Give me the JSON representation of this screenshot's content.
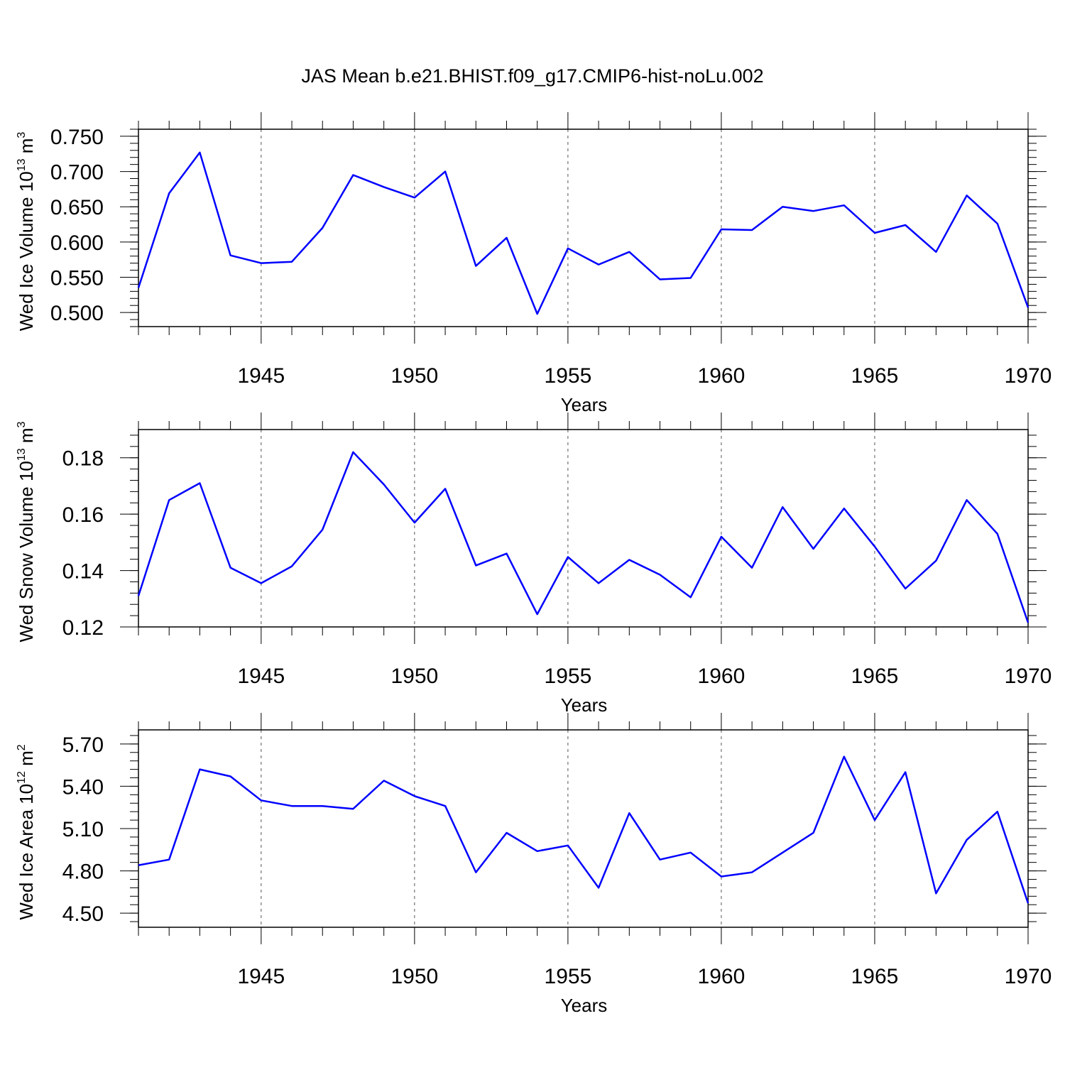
{
  "title": "JAS Mean b.e21.BHIST.f09_g17.CMIP6-hist-noLu.002",
  "colors": {
    "line": "#0000ff",
    "axis": "#000000",
    "grid": "#555555"
  },
  "chart_data": [
    {
      "type": "line",
      "name": "ice-volume",
      "ylabel": "Wed Ice Volume",
      "ylabel_unit_base": "10",
      "ylabel_unit_exp": "13",
      "ylabel_unit_m": "m",
      "ylabel_unit_m_exp": "3",
      "xlabel": "Years",
      "xlim": [
        1941,
        1970
      ],
      "ylim": [
        0.48,
        0.76
      ],
      "xticks": [
        1945,
        1950,
        1955,
        1960,
        1965,
        1970
      ],
      "yticks": [
        0.5,
        0.55,
        0.6,
        0.65,
        0.7,
        0.75
      ],
      "ytick_labels": [
        "0.500",
        "0.550",
        "0.600",
        "0.650",
        "0.700",
        "0.750"
      ],
      "y_minor_step": 0.01,
      "grid_x": [
        1945,
        1950,
        1955,
        1960,
        1965
      ],
      "x": [
        1941,
        1942,
        1943,
        1944,
        1945,
        1946,
        1947,
        1948,
        1949,
        1950,
        1951,
        1952,
        1953,
        1954,
        1955,
        1956,
        1957,
        1958,
        1959,
        1960,
        1961,
        1962,
        1963,
        1964,
        1965,
        1966,
        1967,
        1968,
        1969,
        1970
      ],
      "values": [
        0.535,
        0.669,
        0.727,
        0.581,
        0.57,
        0.572,
        0.62,
        0.695,
        0.678,
        0.663,
        0.7,
        0.566,
        0.606,
        0.498,
        0.591,
        0.568,
        0.586,
        0.547,
        0.549,
        0.618,
        0.617,
        0.65,
        0.644,
        0.652,
        0.613,
        0.624,
        0.586,
        0.666,
        0.626,
        0.507
      ]
    },
    {
      "type": "line",
      "name": "snow-volume",
      "ylabel": "Wed Snow Volume",
      "ylabel_unit_base": "10",
      "ylabel_unit_exp": "13",
      "ylabel_unit_m": "m",
      "ylabel_unit_m_exp": "3",
      "xlabel": "Years",
      "xlim": [
        1941,
        1970
      ],
      "ylim": [
        0.12,
        0.19
      ],
      "xticks": [
        1945,
        1950,
        1955,
        1960,
        1965,
        1970
      ],
      "yticks": [
        0.12,
        0.14,
        0.16,
        0.18
      ],
      "ytick_labels": [
        "0.12",
        "0.14",
        "0.16",
        "0.18"
      ],
      "y_minor_step": 0.004,
      "grid_x": [
        1945,
        1950,
        1955,
        1960,
        1965
      ],
      "x": [
        1941,
        1942,
        1943,
        1944,
        1945,
        1946,
        1947,
        1948,
        1949,
        1950,
        1951,
        1952,
        1953,
        1954,
        1955,
        1956,
        1957,
        1958,
        1959,
        1960,
        1961,
        1962,
        1963,
        1964,
        1965,
        1966,
        1967,
        1968,
        1969,
        1970
      ],
      "values": [
        0.131,
        0.165,
        0.171,
        0.141,
        0.1355,
        0.1415,
        0.1545,
        0.182,
        0.1705,
        0.157,
        0.169,
        0.1418,
        0.146,
        0.1245,
        0.1448,
        0.1355,
        0.1438,
        0.1385,
        0.1305,
        0.152,
        0.141,
        0.1625,
        0.1477,
        0.162,
        0.1485,
        0.1336,
        0.1435,
        0.165,
        0.153,
        0.1215
      ]
    },
    {
      "type": "line",
      "name": "ice-area",
      "ylabel": "Wed Ice Area",
      "ylabel_unit_base": "10",
      "ylabel_unit_exp": "12",
      "ylabel_unit_m": "m",
      "ylabel_unit_m_exp": "2",
      "xlabel": "Years",
      "xlim": [
        1941,
        1970
      ],
      "ylim": [
        4.4,
        5.8
      ],
      "xticks": [
        1945,
        1950,
        1955,
        1960,
        1965,
        1970
      ],
      "yticks": [
        4.5,
        4.8,
        5.1,
        5.4,
        5.7
      ],
      "ytick_labels": [
        "4.50",
        "4.80",
        "5.10",
        "5.40",
        "5.70"
      ],
      "y_minor_step": 0.06,
      "grid_x": [
        1945,
        1950,
        1955,
        1960,
        1965
      ],
      "x": [
        1941,
        1942,
        1943,
        1944,
        1945,
        1946,
        1947,
        1948,
        1949,
        1950,
        1951,
        1952,
        1953,
        1954,
        1955,
        1956,
        1957,
        1958,
        1959,
        1960,
        1961,
        1962,
        1963,
        1964,
        1965,
        1966,
        1967,
        1968,
        1969,
        1970
      ],
      "values": [
        4.84,
        4.88,
        5.52,
        5.47,
        5.3,
        5.26,
        5.26,
        5.24,
        5.44,
        5.33,
        5.26,
        4.79,
        5.07,
        4.94,
        4.98,
        4.68,
        5.21,
        4.88,
        4.93,
        4.76,
        4.79,
        4.93,
        5.07,
        5.61,
        5.16,
        5.5,
        4.64,
        5.02,
        5.22,
        4.57
      ]
    }
  ]
}
